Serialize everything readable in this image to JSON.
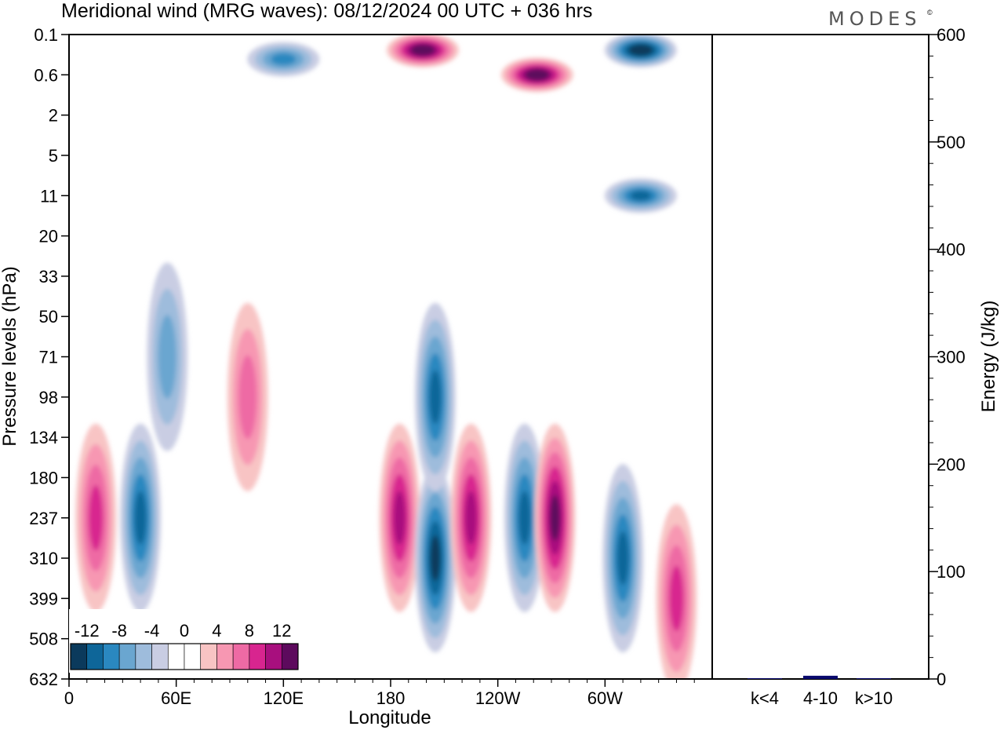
{
  "chart_data": {
    "type": "heatmap",
    "title": "Meridional wind (MRG waves):  08/12/2024  00 UTC  + 036 hrs",
    "brand": "MODES",
    "brand_mark": "©",
    "xlabel": "Longitude",
    "ylabel": "Pressure levels (hPa)",
    "x_ticks": [
      "0",
      "60E",
      "120E",
      "180",
      "120W",
      "60W"
    ],
    "x_tick_degrees": [
      0,
      60,
      120,
      180,
      240,
      300
    ],
    "x_range_degrees": [
      0,
      360
    ],
    "y_ticks": [
      "0.1",
      "0.6",
      "2",
      "5",
      "11",
      "20",
      "33",
      "50",
      "71",
      "98",
      "134",
      "180",
      "237",
      "310",
      "399",
      "508",
      "632"
    ],
    "colorbar": {
      "labels": [
        "-12",
        "-8",
        "-4",
        "0",
        "4",
        "8",
        "12"
      ],
      "levels": [
        -14,
        -12,
        -10,
        -8,
        -6,
        -4,
        -2,
        0,
        2,
        4,
        6,
        8,
        10,
        12,
        14
      ],
      "colors": [
        "#0b3a5c",
        "#0e6699",
        "#2a88c0",
        "#6aa6d0",
        "#9ebcdc",
        "#c9cde3",
        "#ffffff",
        "#ffffff",
        "#f8c4c4",
        "#f797b2",
        "#ee6aa4",
        "#d8258f",
        "#a80f7e",
        "#5d0a5d"
      ]
    },
    "wave_cells": [
      {
        "lon": 15,
        "p": 237,
        "v": 8
      },
      {
        "lon": 40,
        "p": 237,
        "v": -10
      },
      {
        "lon": 100,
        "p": 98,
        "v": 6
      },
      {
        "lon": 55,
        "p": 71,
        "v": -6
      },
      {
        "lon": 185,
        "p": 237,
        "v": 10
      },
      {
        "lon": 205,
        "p": 310,
        "v": -12
      },
      {
        "lon": 205,
        "p": 98,
        "v": -10
      },
      {
        "lon": 225,
        "p": 237,
        "v": 10
      },
      {
        "lon": 255,
        "p": 237,
        "v": -10
      },
      {
        "lon": 272,
        "p": 237,
        "v": 12
      },
      {
        "lon": 310,
        "p": 310,
        "v": -10
      },
      {
        "lon": 340,
        "p": 399,
        "v": 8
      },
      {
        "lon": 198,
        "p": 0.2,
        "v": 14
      },
      {
        "lon": 262,
        "p": 0.6,
        "v": 14
      },
      {
        "lon": 320,
        "p": 0.2,
        "v": -14
      },
      {
        "lon": 320,
        "p": 11,
        "v": -10
      },
      {
        "lon": 120,
        "p": 0.3,
        "v": -8
      }
    ],
    "energy": {
      "ylabel": "Energy (J/kg)",
      "y_ticks": [
        "0",
        "100",
        "200",
        "300",
        "400",
        "500",
        "600"
      ],
      "ylim": [
        0,
        600
      ],
      "categories": [
        "k<4",
        "4-10",
        "k>10"
      ],
      "values": [
        0.5,
        3,
        0.5
      ],
      "bar_color": "#0a0a6e"
    }
  }
}
